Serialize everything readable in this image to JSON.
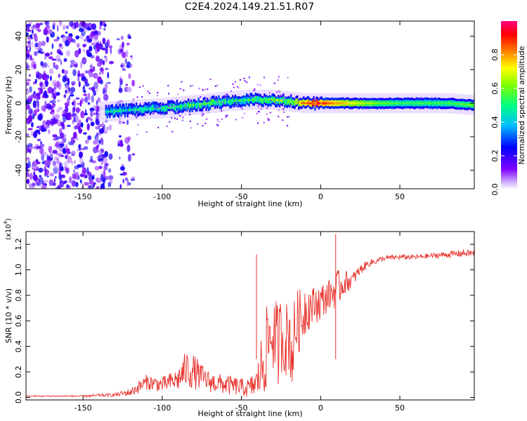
{
  "title": "C2E4.2024.149.21.51.R07",
  "chart_data": [
    {
      "type": "heatmap",
      "xlabel": "Height of straight line (km)",
      "ylabel": "Frequency (Hz)",
      "xlim": [
        -186,
        97
      ],
      "ylim": [
        -51,
        49
      ],
      "xticks": [
        -150,
        -100,
        -50,
        0,
        50
      ],
      "xtick_labels": [
        "-150",
        "-100",
        "-50",
        "0",
        "50"
      ],
      "yticks": [
        -40,
        -20,
        0,
        20,
        40
      ],
      "ytick_labels": [
        "-40",
        "-20",
        "0",
        "20",
        "40"
      ],
      "colorbar": {
        "label": "Normalized spectral amplitude",
        "range": [
          0,
          1
        ],
        "ticks": [
          0.0,
          0.2,
          0.4,
          0.6,
          0.8
        ],
        "tick_labels": [
          "0.0",
          "0.2",
          "0.4",
          "0.6",
          "0.8"
        ],
        "colormap": "rainbow",
        "colors": [
          "#ffffff",
          "#8000ff",
          "#0000ff",
          "#00bfff",
          "#00ff80",
          "#80ff00",
          "#ffff00",
          "#ff8000",
          "#ff0000",
          "#ff0080"
        ]
      },
      "ridge": {
        "x": [
          -135,
          -120,
          -100,
          -80,
          -60,
          -45,
          -30,
          -20,
          -10,
          0,
          20,
          50,
          80,
          95
        ],
        "freq": [
          -5,
          -4,
          -3,
          -1,
          1,
          2,
          2,
          1,
          0,
          0,
          0,
          0,
          0,
          -1
        ],
        "amplitude": [
          0.45,
          0.45,
          0.5,
          0.55,
          0.55,
          0.5,
          0.6,
          0.6,
          0.85,
          0.9,
          0.7,
          0.55,
          0.55,
          0.6
        ]
      },
      "noise_region_x": [
        -186,
        -118
      ]
    },
    {
      "type": "line",
      "xlabel": "Height of straight line (km)",
      "ylabel": "SNR (10 * v/v)",
      "y_multiplier": "(x10",
      "y_multiplier_exp": "4",
      "y_multiplier_close": ")",
      "xlim": [
        -186,
        97
      ],
      "ylim": [
        -0.02,
        1.3
      ],
      "xticks": [
        -150,
        -100,
        -50,
        0,
        50
      ],
      "xtick_labels": [
        "-150",
        "-100",
        "-50",
        "0",
        "50"
      ],
      "yticks": [
        0.0,
        0.2,
        0.4,
        0.6,
        0.8,
        1.0,
        1.2
      ],
      "ytick_labels": [
        "0.0",
        "0.2",
        "0.4",
        "0.6",
        "0.8",
        "1.0",
        "1.2"
      ],
      "series": [
        {
          "name": "SNR",
          "color": "#e8302a",
          "x": [
            -186,
            -170,
            -150,
            -130,
            -120,
            -115,
            -110,
            -100,
            -90,
            -85,
            -80,
            -75,
            -70,
            -60,
            -50,
            -45,
            -40,
            -36,
            -33,
            -30,
            -27,
            -25,
            -22,
            -20,
            -18,
            -15,
            -12,
            -10,
            -5,
            0,
            5,
            10,
            15,
            20,
            25,
            30,
            40,
            50,
            60,
            70,
            80,
            90,
            97
          ],
          "y": [
            0.01,
            0.01,
            0.01,
            0.02,
            0.04,
            0.08,
            0.12,
            0.1,
            0.14,
            0.22,
            0.2,
            0.16,
            0.12,
            0.1,
            0.08,
            0.07,
            0.12,
            0.3,
            0.45,
            0.5,
            0.4,
            0.5,
            0.45,
            0.5,
            0.35,
            0.6,
            0.6,
            0.7,
            0.72,
            0.75,
            0.8,
            0.85,
            0.9,
            0.92,
            1.0,
            1.05,
            1.09,
            1.1,
            1.1,
            1.11,
            1.12,
            1.13,
            1.13
          ],
          "jitter_amplitude": [
            0.005,
            0.005,
            0.008,
            0.015,
            0.03,
            0.05,
            0.06,
            0.06,
            0.09,
            0.15,
            0.14,
            0.1,
            0.08,
            0.08,
            0.07,
            0.08,
            0.12,
            0.35,
            0.3,
            0.3,
            0.35,
            0.3,
            0.3,
            0.3,
            0.35,
            0.25,
            0.25,
            0.22,
            0.15,
            0.15,
            0.12,
            0.15,
            0.1,
            0.06,
            0.04,
            0.03,
            0.02,
            0.02,
            0.02,
            0.02,
            0.025,
            0.03,
            0.03
          ]
        }
      ],
      "spikes": [
        {
          "x": -40.5,
          "y": 1.12
        },
        {
          "x": 9.5,
          "y": 1.28
        }
      ]
    }
  ]
}
